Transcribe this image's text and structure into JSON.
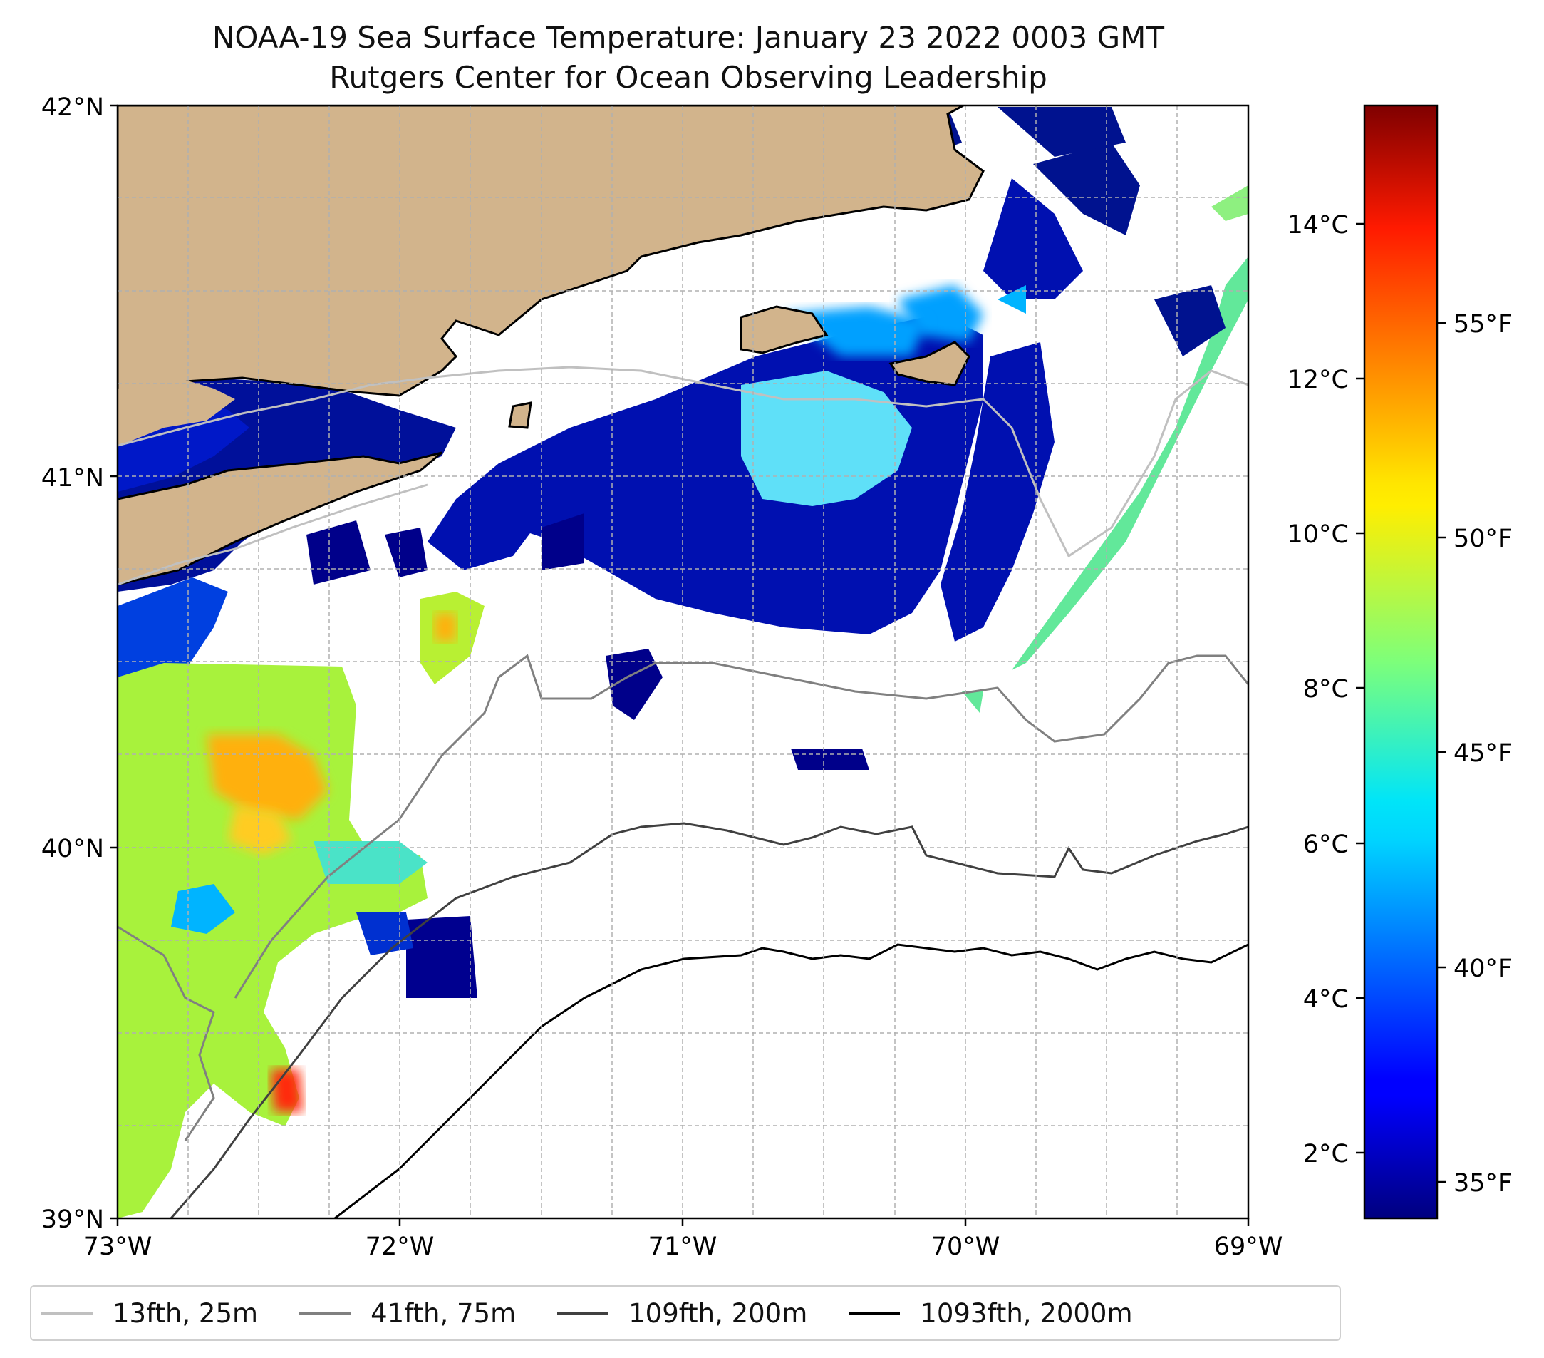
{
  "figure": {
    "title_line1": "NOAA-19 Sea Surface Temperature: January 23 2022 0003 GMT",
    "title_line2": "Rutgers Center for Ocean Observing Leadership"
  },
  "map": {
    "lat_labels": [
      "42°N",
      "41°N",
      "40°N",
      "39°N"
    ],
    "lon_labels": [
      "73°W",
      "72°W",
      "71°W",
      "70°W",
      "69°W"
    ],
    "land_color": "#d2b48c",
    "gridline_color": "#b0b0b0"
  },
  "colorbar": {
    "celsius_ticks": [
      "14°C",
      "12°C",
      "10°C",
      "8°C",
      "6°C",
      "4°C",
      "2°C"
    ],
    "fahrenheit_ticks": [
      "55°F",
      "50°F",
      "45°F",
      "40°F",
      "35°F"
    ],
    "colormap": "jet"
  },
  "legend": {
    "items": [
      {
        "label": "13fth, 25m",
        "color": "#c0c0c0"
      },
      {
        "label": "41fth, 75m",
        "color": "#808080"
      },
      {
        "label": "109fth, 200m",
        "color": "#404040"
      },
      {
        "label": "1093fth, 2000m",
        "color": "#000000"
      }
    ]
  }
}
